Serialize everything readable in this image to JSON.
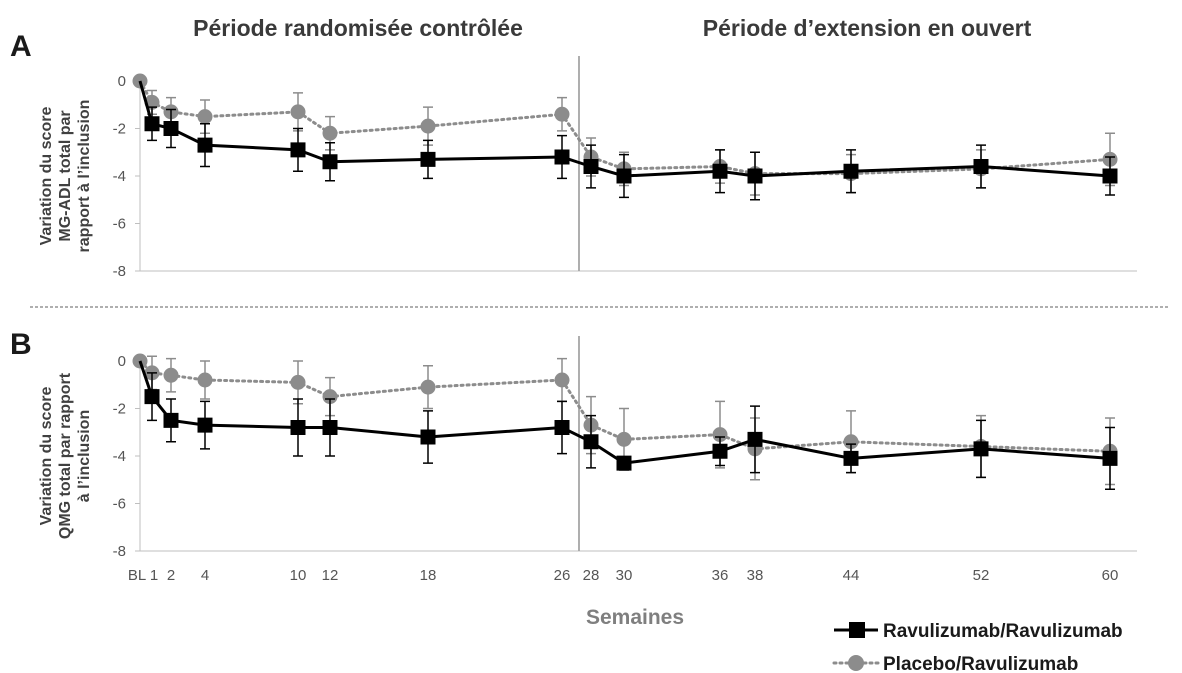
{
  "periods": {
    "randomized": "Période randomisée contrôlée",
    "extension": "Période d’extension en ouvert"
  },
  "x_axis": {
    "title": "Semaines",
    "ticks": [
      {
        "label": "BL",
        "value": 0
      },
      {
        "label": "1",
        "value": 1
      },
      {
        "label": "2",
        "value": 2
      },
      {
        "label": "4",
        "value": 4
      },
      {
        "label": "10",
        "value": 10
      },
      {
        "label": "12",
        "value": 12
      },
      {
        "label": "18",
        "value": 18
      },
      {
        "label": "26",
        "value": 26
      },
      {
        "label": "28",
        "value": 28
      },
      {
        "label": "30",
        "value": 30
      },
      {
        "label": "36",
        "value": 36
      },
      {
        "label": "38",
        "value": 38
      },
      {
        "label": "44",
        "value": 44
      },
      {
        "label": "52",
        "value": 52
      },
      {
        "label": "60",
        "value": 60
      }
    ]
  },
  "legend": {
    "placement": "bottom-right",
    "items": [
      {
        "key": "ravu",
        "label": "Ravulizumab/Ravulizumab",
        "color": "#000000",
        "marker": "square",
        "line": "solid"
      },
      {
        "key": "placebo",
        "label": "Placebo/Ravulizumab",
        "color": "#8c8c8c",
        "marker": "circle",
        "line": "dotted"
      }
    ]
  },
  "colors": {
    "ravu": "#000000",
    "placebo": "#8c8c8c",
    "divider": "#a6a6a6",
    "axis": "#bfbfbf"
  },
  "chart_data": [
    {
      "panel": "A",
      "type": "line",
      "ylabel": [
        "Variation du score",
        "MG-ADL total par",
        "rapport à l’inclusion"
      ],
      "ylim": [
        -8,
        0
      ],
      "yticks": [
        0,
        -2,
        -4,
        -6,
        -8
      ],
      "divider_x": 27,
      "grid": false,
      "series": [
        {
          "key": "ravu",
          "name": "Ravulizumab/Ravulizumab",
          "points": [
            {
              "x": 0,
              "y": 0,
              "err": 0
            },
            {
              "x": 1,
              "y": -1.8,
              "err": 0.7
            },
            {
              "x": 2,
              "y": -2.0,
              "err": 0.8
            },
            {
              "x": 4,
              "y": -2.7,
              "err": 0.9
            },
            {
              "x": 10,
              "y": -2.9,
              "err": 0.9
            },
            {
              "x": 12,
              "y": -3.4,
              "err": 0.8
            },
            {
              "x": 18,
              "y": -3.3,
              "err": 0.8
            },
            {
              "x": 26,
              "y": -3.2,
              "err": 0.9
            },
            {
              "x": 28,
              "y": -3.6,
              "err": 0.9
            },
            {
              "x": 30,
              "y": -4.0,
              "err": 0.9
            },
            {
              "x": 36,
              "y": -3.8,
              "err": 0.9
            },
            {
              "x": 38,
              "y": -4.0,
              "err": 1.0
            },
            {
              "x": 44,
              "y": -3.8,
              "err": 0.9
            },
            {
              "x": 52,
              "y": -3.6,
              "err": 0.9
            },
            {
              "x": 60,
              "y": -4.0,
              "err": 0.8
            }
          ]
        },
        {
          "key": "placebo",
          "name": "Placebo/Ravulizumab",
          "points": [
            {
              "x": 0,
              "y": 0,
              "err": 0
            },
            {
              "x": 1,
              "y": -0.9,
              "err": 0.5
            },
            {
              "x": 2,
              "y": -1.3,
              "err": 0.6
            },
            {
              "x": 4,
              "y": -1.5,
              "err": 0.7
            },
            {
              "x": 10,
              "y": -1.3,
              "err": 0.8
            },
            {
              "x": 12,
              "y": -2.2,
              "err": 0.7
            },
            {
              "x": 18,
              "y": -1.9,
              "err": 0.8
            },
            {
              "x": 26,
              "y": -1.4,
              "err": 0.7
            },
            {
              "x": 28,
              "y": -3.2,
              "err": 0.8
            },
            {
              "x": 30,
              "y": -3.7,
              "err": 0.7
            },
            {
              "x": 36,
              "y": -3.6,
              "err": 0.7
            },
            {
              "x": 38,
              "y": -3.9,
              "err": 0.9
            },
            {
              "x": 44,
              "y": -3.9,
              "err": 0.8
            },
            {
              "x": 52,
              "y": -3.7,
              "err": 0.8
            },
            {
              "x": 60,
              "y": -3.3,
              "err": 1.1
            }
          ]
        }
      ]
    },
    {
      "panel": "B",
      "type": "line",
      "ylabel": [
        "Variation du score",
        "QMG total par rapport",
        "à l’inclusion"
      ],
      "ylim": [
        -8,
        0
      ],
      "yticks": [
        0,
        -2,
        -4,
        -6,
        -8
      ],
      "divider_x": 27,
      "grid": false,
      "series": [
        {
          "key": "ravu",
          "name": "Ravulizumab/Ravulizumab",
          "points": [
            {
              "x": 0,
              "y": 0,
              "err": 0
            },
            {
              "x": 1,
              "y": -1.5,
              "err": 1.0
            },
            {
              "x": 2,
              "y": -2.5,
              "err": 0.9
            },
            {
              "x": 4,
              "y": -2.7,
              "err": 1.0
            },
            {
              "x": 10,
              "y": -2.8,
              "err": 1.2
            },
            {
              "x": 12,
              "y": -2.8,
              "err": 1.2
            },
            {
              "x": 18,
              "y": -3.2,
              "err": 1.1
            },
            {
              "x": 26,
              "y": -2.8,
              "err": 1.1
            },
            {
              "x": 28,
              "y": -3.4,
              "err": 1.1
            },
            {
              "x": 30,
              "y": -4.3,
              "err": 0.0
            },
            {
              "x": 36,
              "y": -3.8,
              "err": 0.6
            },
            {
              "x": 38,
              "y": -3.3,
              "err": 1.4
            },
            {
              "x": 44,
              "y": -4.1,
              "err": 0.6
            },
            {
              "x": 52,
              "y": -3.7,
              "err": 1.2
            },
            {
              "x": 60,
              "y": -4.1,
              "err": 1.3
            }
          ]
        },
        {
          "key": "placebo",
          "name": "Placebo/Ravulizumab",
          "points": [
            {
              "x": 0,
              "y": 0,
              "err": 0
            },
            {
              "x": 1,
              "y": -0.5,
              "err": 0.7
            },
            {
              "x": 2,
              "y": -0.6,
              "err": 0.7
            },
            {
              "x": 4,
              "y": -0.8,
              "err": 0.8
            },
            {
              "x": 10,
              "y": -0.9,
              "err": 0.9
            },
            {
              "x": 12,
              "y": -1.5,
              "err": 0.8
            },
            {
              "x": 18,
              "y": -1.1,
              "err": 0.9
            },
            {
              "x": 26,
              "y": -0.8,
              "err": 0.9
            },
            {
              "x": 28,
              "y": -2.7,
              "err": 1.2
            },
            {
              "x": 30,
              "y": -3.3,
              "err": 1.3
            },
            {
              "x": 36,
              "y": -3.1,
              "err": 1.4
            },
            {
              "x": 38,
              "y": -3.7,
              "err": 1.3
            },
            {
              "x": 44,
              "y": -3.4,
              "err": 1.3
            },
            {
              "x": 52,
              "y": -3.6,
              "err": 1.3
            },
            {
              "x": 60,
              "y": -3.8,
              "err": 1.4
            }
          ]
        }
      ]
    }
  ]
}
